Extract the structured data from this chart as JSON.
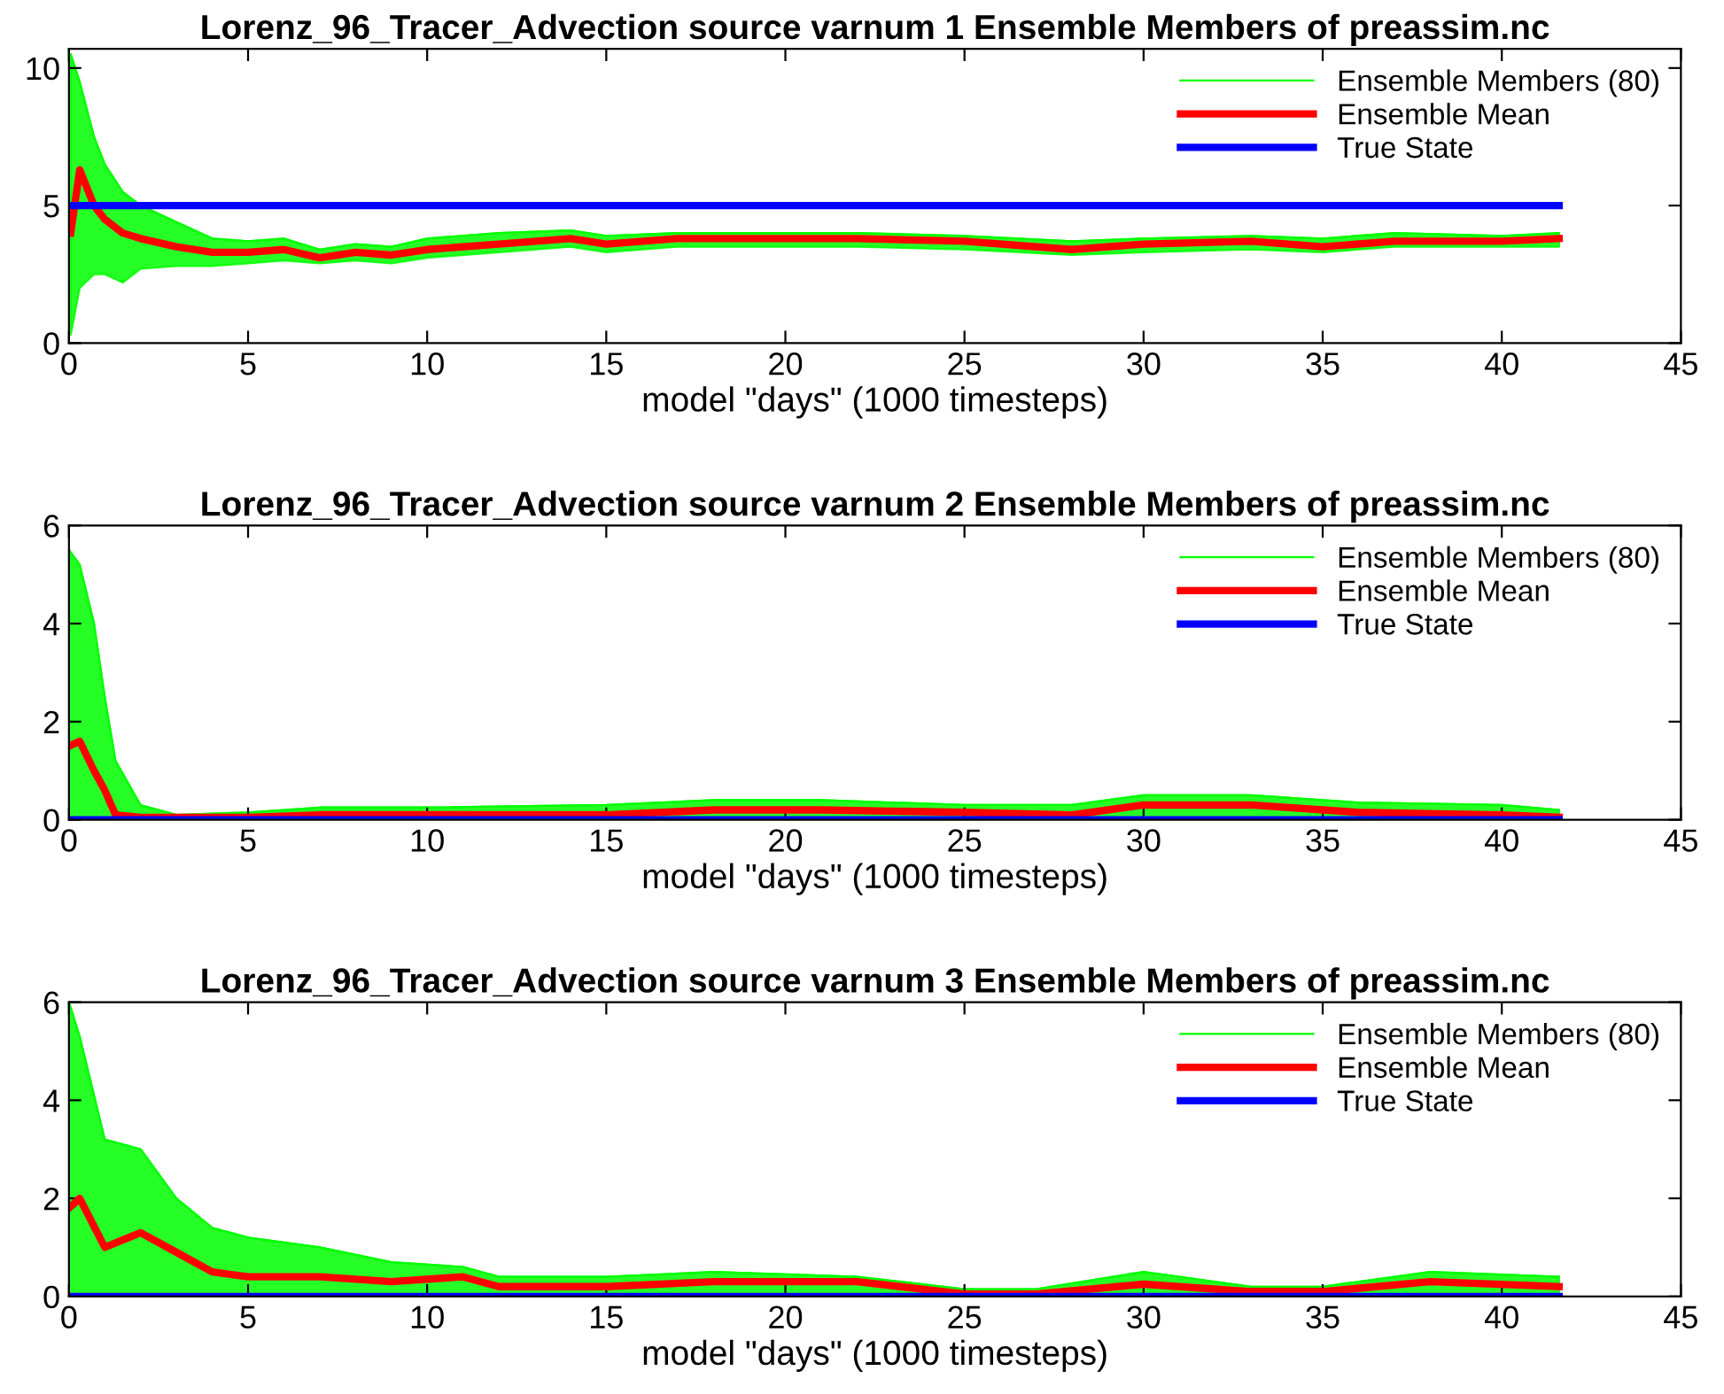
{
  "chart_data": [
    {
      "type": "line",
      "title": "Lorenz_96_Tracer_Advection source varnum 1 Ensemble Members of preassim.nc",
      "xlabel": "model \"days\" (1000 timesteps)",
      "xlim": [
        0,
        45
      ],
      "xticks": [
        0,
        5,
        10,
        15,
        20,
        25,
        30,
        35,
        40,
        45
      ],
      "ylim": [
        0,
        10.7
      ],
      "yticks": [
        0,
        5,
        10
      ],
      "grid": false,
      "legend": "top right",
      "series": [
        {
          "name": "Ensemble Members (80)",
          "color": "#00ff00",
          "x": [
            0.05,
            0.3,
            0.7,
            1,
            1.5,
            2,
            3,
            4,
            5,
            6,
            7,
            8,
            9,
            10,
            12,
            14,
            15,
            17,
            20,
            22,
            25,
            28,
            30,
            33,
            35,
            37,
            40,
            41.6
          ],
          "values": [
            10.5,
            9.5,
            7.5,
            6.5,
            5.5,
            5.0,
            4.4,
            3.8,
            3.7,
            3.8,
            3.4,
            3.6,
            3.5,
            3.8,
            4.0,
            4.1,
            3.9,
            4.0,
            4.0,
            4.0,
            3.9,
            3.7,
            3.8,
            3.9,
            3.8,
            4.0,
            3.9,
            4.0
          ],
          "lower": [
            0.3,
            2,
            2.5,
            2.5,
            2.2,
            2.7,
            2.8,
            2.8,
            2.9,
            3.0,
            2.9,
            3.0,
            2.9,
            3.1,
            3.3,
            3.5,
            3.3,
            3.5,
            3.5,
            3.5,
            3.4,
            3.2,
            3.3,
            3.4,
            3.3,
            3.5,
            3.5,
            3.5
          ],
          "upper": [
            10.5,
            9.5,
            7.5,
            6.5,
            5.5,
            5.0,
            4.4,
            3.8,
            3.7,
            3.8,
            3.4,
            3.6,
            3.5,
            3.8,
            4.0,
            4.1,
            3.9,
            4.0,
            4.0,
            4.0,
            3.9,
            3.7,
            3.8,
            3.9,
            3.8,
            4.0,
            3.9,
            4.0
          ]
        },
        {
          "name": "Ensemble Mean",
          "color": "#ff0000",
          "x": [
            0.05,
            0.3,
            0.7,
            1,
            1.5,
            2,
            3,
            4,
            5,
            6,
            7,
            8,
            9,
            10,
            12,
            14,
            15,
            17,
            20,
            22,
            25,
            28,
            30,
            33,
            35,
            37,
            40,
            41.6
          ],
          "values": [
            4.0,
            6.3,
            5.0,
            4.5,
            4.0,
            3.8,
            3.5,
            3.3,
            3.3,
            3.4,
            3.1,
            3.3,
            3.2,
            3.4,
            3.6,
            3.8,
            3.6,
            3.8,
            3.8,
            3.8,
            3.7,
            3.4,
            3.6,
            3.7,
            3.5,
            3.7,
            3.7,
            3.8
          ]
        },
        {
          "name": "True State",
          "color": "#0000ff",
          "x": [
            0,
            41.6
          ],
          "values": [
            5,
            5
          ]
        }
      ]
    },
    {
      "type": "line",
      "title": "Lorenz_96_Tracer_Advection source varnum 2 Ensemble Members of preassim.nc",
      "xlabel": "model \"days\" (1000 timesteps)",
      "xlim": [
        0,
        45
      ],
      "xticks": [
        0,
        5,
        10,
        15,
        20,
        25,
        30,
        35,
        40,
        45
      ],
      "ylim": [
        0,
        6
      ],
      "yticks": [
        0,
        2,
        4,
        6
      ],
      "grid": false,
      "legend": "top right",
      "series": [
        {
          "name": "Ensemble Members (80)",
          "color": "#00ff00",
          "x": [
            0,
            0.3,
            0.7,
            1,
            1.3,
            2,
            3,
            5,
            7,
            10,
            15,
            18,
            21,
            25,
            28,
            30,
            33,
            36,
            40,
            41.6
          ],
          "values": [
            5.5,
            5.2,
            4.0,
            2.5,
            1.2,
            0.3,
            0.1,
            0.15,
            0.25,
            0.25,
            0.3,
            0.4,
            0.4,
            0.3,
            0.3,
            0.5,
            0.5,
            0.35,
            0.3,
            0.2
          ],
          "lower": [
            0,
            0,
            0,
            0,
            0,
            0,
            0,
            0,
            0,
            0,
            0,
            0,
            0,
            0,
            0,
            0.05,
            0.05,
            0,
            0,
            0
          ],
          "upper": [
            5.5,
            5.2,
            4.0,
            2.5,
            1.2,
            0.3,
            0.1,
            0.15,
            0.25,
            0.25,
            0.3,
            0.4,
            0.4,
            0.3,
            0.3,
            0.5,
            0.5,
            0.35,
            0.3,
            0.2
          ]
        },
        {
          "name": "Ensemble Mean",
          "color": "#ff0000",
          "x": [
            0,
            0.3,
            0.7,
            1,
            1.3,
            2,
            3,
            5,
            7,
            10,
            15,
            18,
            21,
            25,
            28,
            30,
            33,
            36,
            40,
            41.6
          ],
          "values": [
            1.5,
            1.6,
            1.0,
            0.6,
            0.1,
            0.05,
            0.05,
            0.05,
            0.1,
            0.1,
            0.1,
            0.2,
            0.2,
            0.15,
            0.1,
            0.3,
            0.3,
            0.15,
            0.1,
            0.05
          ]
        },
        {
          "name": "True State",
          "color": "#0000ff",
          "x": [
            0,
            41.6
          ],
          "values": [
            0,
            0
          ]
        }
      ]
    },
    {
      "type": "line",
      "title": "Lorenz_96_Tracer_Advection source varnum 3 Ensemble Members of preassim.nc",
      "xlabel": "model \"days\" (1000 timesteps)",
      "xlim": [
        0,
        45
      ],
      "xticks": [
        0,
        5,
        10,
        15,
        20,
        25,
        30,
        35,
        40,
        45
      ],
      "ylim": [
        0,
        6
      ],
      "yticks": [
        0,
        2,
        4,
        6
      ],
      "grid": false,
      "legend": "top right",
      "series": [
        {
          "name": "Ensemble Members (80)",
          "color": "#00ff00",
          "x": [
            0,
            0.3,
            1,
            2,
            3,
            4,
            5,
            7,
            9,
            11,
            12,
            15,
            18,
            22,
            25,
            27,
            30,
            33,
            35,
            38,
            41.6
          ],
          "values": [
            6,
            5.3,
            3.2,
            3.0,
            2.0,
            1.4,
            1.2,
            1.0,
            0.7,
            0.6,
            0.4,
            0.4,
            0.5,
            0.4,
            0.15,
            0.15,
            0.5,
            0.2,
            0.2,
            0.5,
            0.4
          ],
          "lower": [
            0,
            0.05,
            0.05,
            0.05,
            0.05,
            0.05,
            0.05,
            0.05,
            0.05,
            0.05,
            0.05,
            0.05,
            0.05,
            0.05,
            0,
            0,
            0.05,
            0,
            0,
            0.05,
            0.05
          ],
          "upper": [
            6,
            5.3,
            3.2,
            3.0,
            2.0,
            1.4,
            1.2,
            1.0,
            0.7,
            0.6,
            0.4,
            0.4,
            0.5,
            0.4,
            0.15,
            0.15,
            0.5,
            0.2,
            0.2,
            0.5,
            0.4
          ]
        },
        {
          "name": "Ensemble Mean",
          "color": "#ff0000",
          "x": [
            0,
            0.3,
            1,
            2,
            3,
            4,
            5,
            7,
            9,
            11,
            12,
            15,
            18,
            22,
            25,
            27,
            30,
            33,
            35,
            38,
            41.6
          ],
          "values": [
            1.8,
            2.0,
            1.0,
            1.3,
            0.9,
            0.5,
            0.4,
            0.4,
            0.3,
            0.4,
            0.2,
            0.2,
            0.3,
            0.3,
            0.05,
            0.05,
            0.25,
            0.1,
            0.1,
            0.3,
            0.2
          ]
        },
        {
          "name": "True State",
          "color": "#0000ff",
          "x": [
            0,
            41.6
          ],
          "values": [
            0,
            0
          ]
        }
      ]
    }
  ]
}
